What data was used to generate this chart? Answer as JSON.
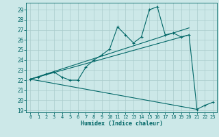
{
  "xlabel": "Humidex (Indice chaleur)",
  "bg_color": "#cce8e8",
  "line_color": "#006666",
  "grid_color": "#aacccc",
  "xlim": [
    -0.5,
    23.5
  ],
  "ylim": [
    18.8,
    29.7
  ],
  "xticks": [
    0,
    1,
    2,
    3,
    4,
    5,
    6,
    7,
    8,
    9,
    10,
    11,
    12,
    13,
    14,
    15,
    16,
    17,
    18,
    19,
    20,
    21,
    22,
    23
  ],
  "yticks": [
    19,
    20,
    21,
    22,
    23,
    24,
    25,
    26,
    27,
    28,
    29
  ],
  "series": [
    [
      0,
      22.1
    ],
    [
      1,
      22.3
    ],
    [
      2,
      22.6
    ],
    [
      3,
      22.8
    ],
    [
      4,
      22.3
    ],
    [
      5,
      22.0
    ],
    [
      6,
      22.0
    ],
    [
      7,
      23.3
    ],
    [
      8,
      24.0
    ],
    [
      9,
      24.5
    ],
    [
      10,
      25.1
    ],
    [
      11,
      27.3
    ],
    [
      12,
      26.5
    ],
    [
      13,
      25.7
    ],
    [
      14,
      26.3
    ],
    [
      15,
      29.0
    ],
    [
      16,
      29.3
    ],
    [
      17,
      26.5
    ],
    [
      18,
      26.7
    ],
    [
      19,
      26.3
    ],
    [
      20,
      26.5
    ],
    [
      21,
      19.1
    ],
    [
      22,
      19.5
    ],
    [
      23,
      19.8
    ]
  ],
  "line_upper": [
    [
      0,
      22.1
    ],
    [
      20,
      27.2
    ]
  ],
  "line_mid": [
    [
      0,
      22.1
    ],
    [
      20,
      26.5
    ]
  ],
  "line_lower": [
    [
      0,
      22.1
    ],
    [
      21,
      19.1
    ]
  ]
}
